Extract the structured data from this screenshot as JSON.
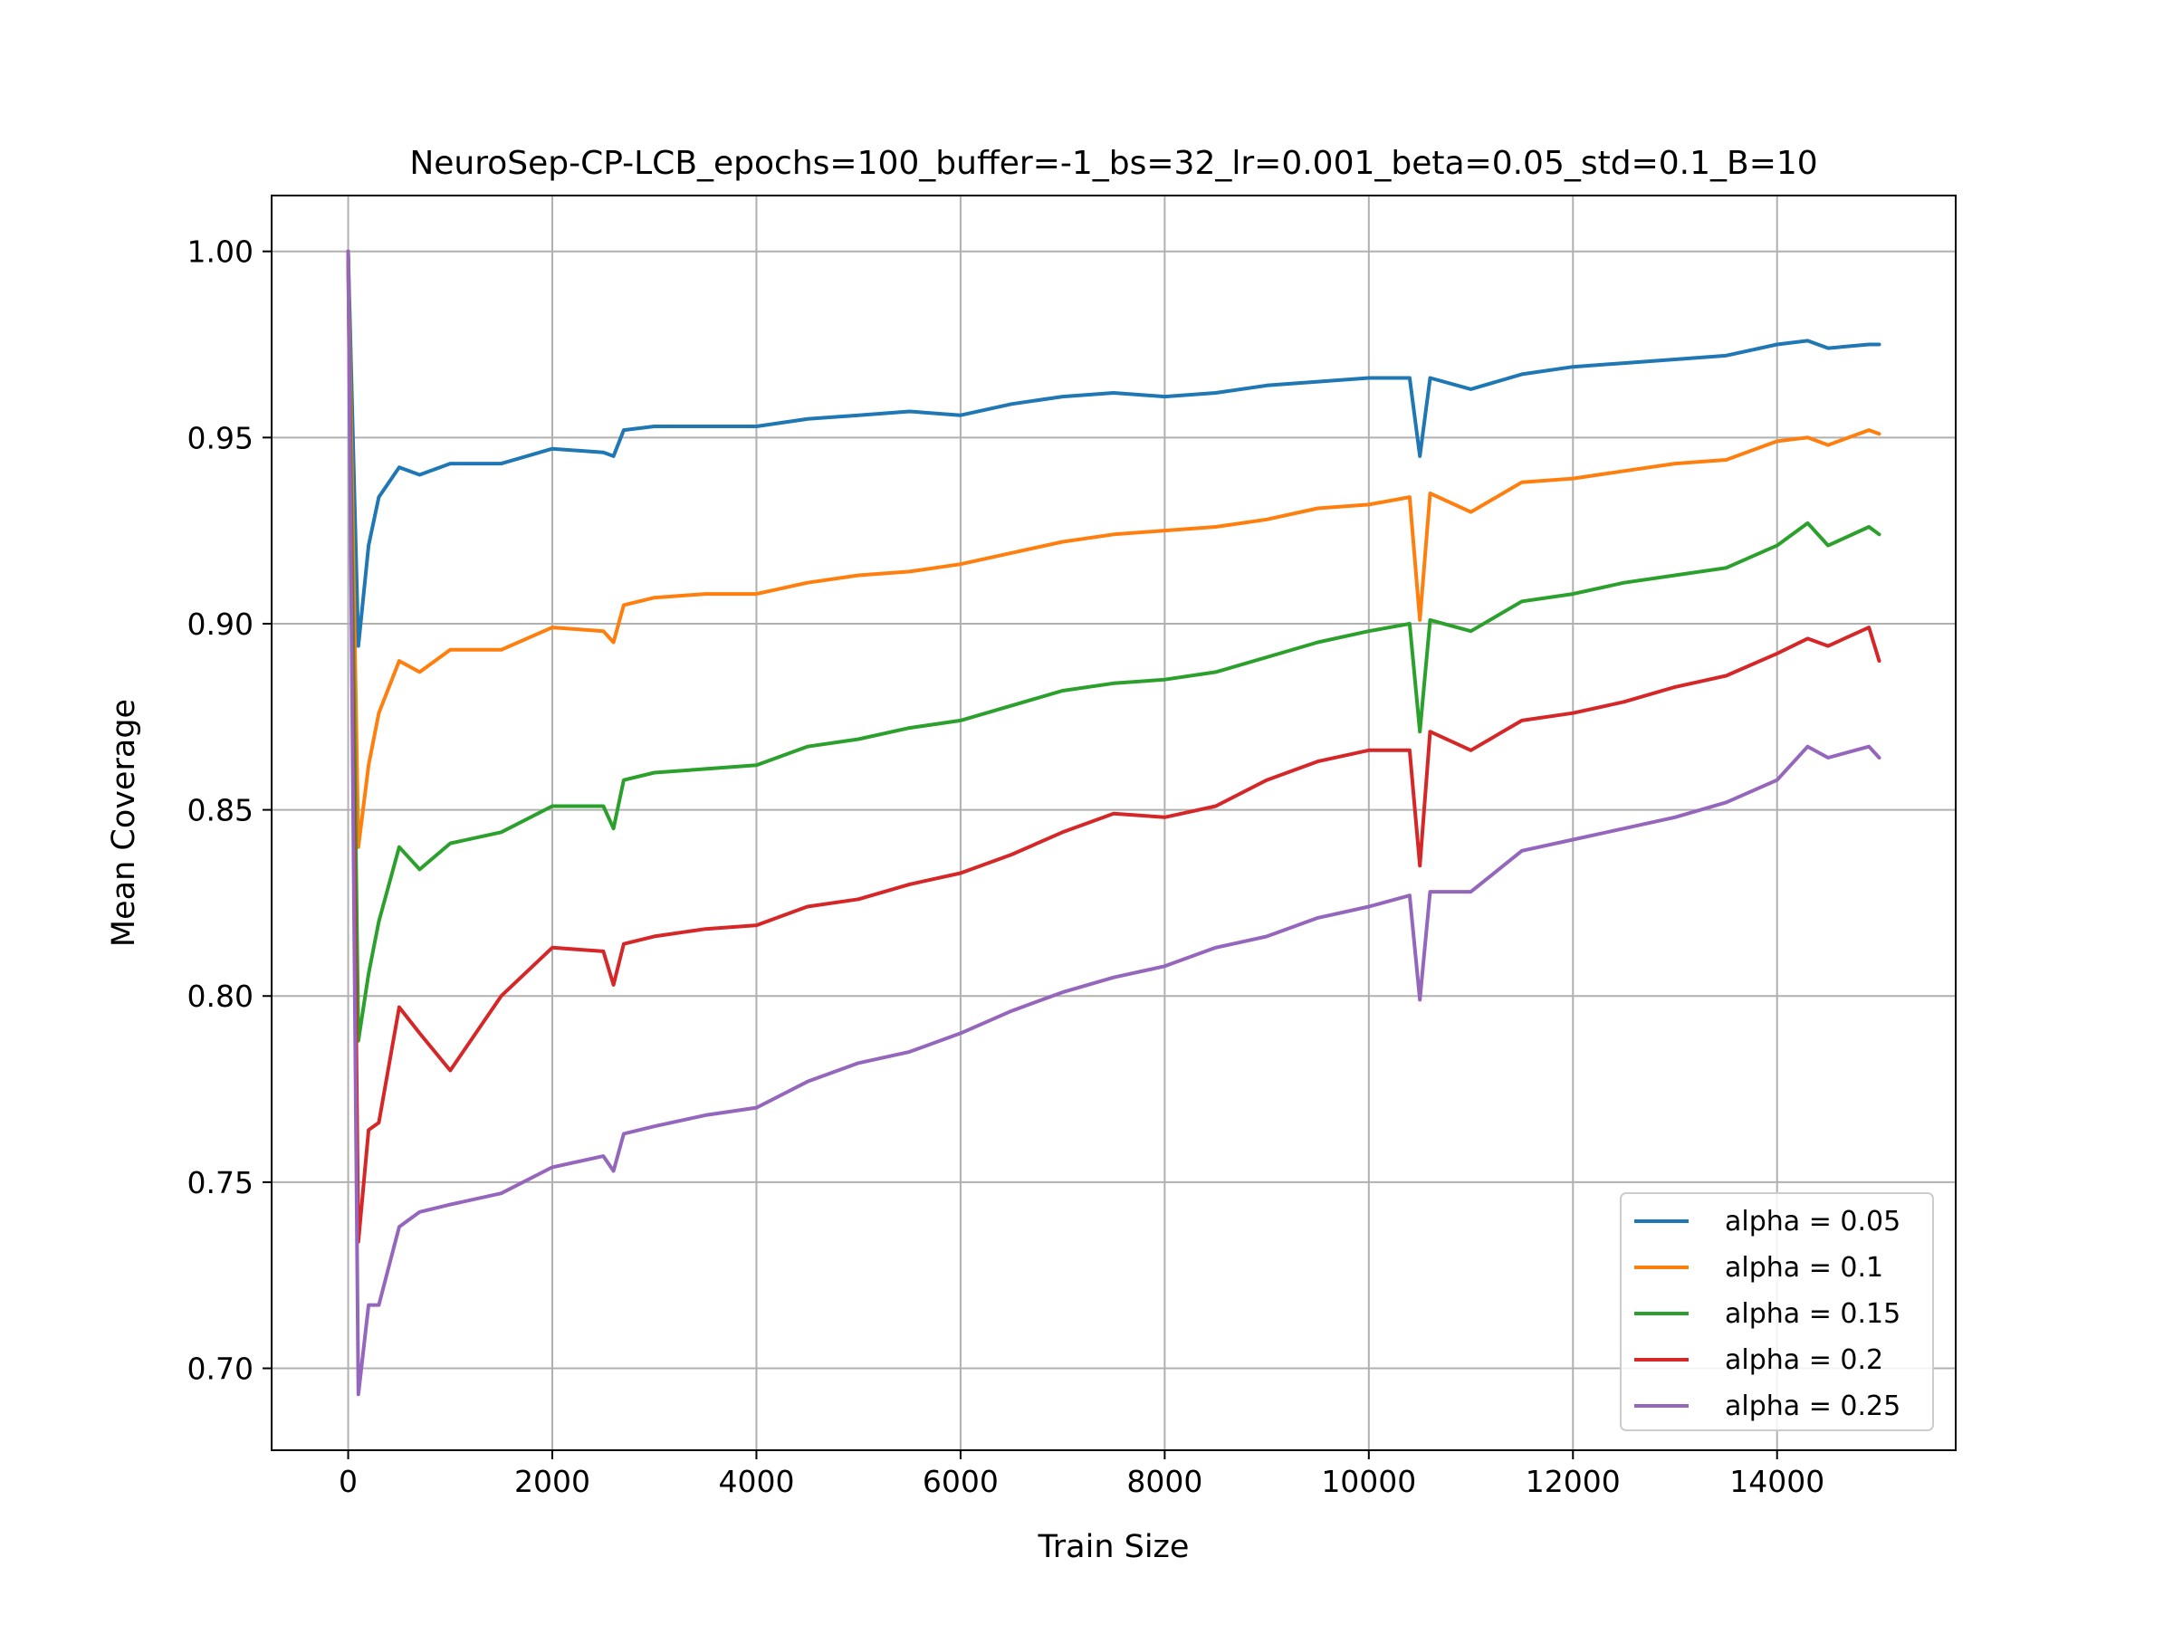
{
  "chart_data": {
    "type": "line",
    "title": "NeuroSep-CP-LCB_epochs=100_buffer=-1_bs=32_lr=0.001_beta=0.05_std=0.1_B=10",
    "xlabel": "Train Size",
    "ylabel": "Mean Coverage",
    "xlim": [
      -750,
      15750
    ],
    "ylim": [
      0.678,
      1.015
    ],
    "xticks": [
      0,
      2000,
      4000,
      6000,
      8000,
      10000,
      12000,
      14000
    ],
    "xtick_labels": [
      "0",
      "2000",
      "4000",
      "6000",
      "8000",
      "10000",
      "12000",
      "14000"
    ],
    "yticks": [
      0.7,
      0.75,
      0.8,
      0.85,
      0.9,
      0.95,
      1.0
    ],
    "ytick_labels": [
      "0.70",
      "0.75",
      "0.80",
      "0.85",
      "0.90",
      "0.95",
      "1.00"
    ],
    "grid": true,
    "legend_position": "lower-right",
    "x": [
      0,
      100,
      200,
      300,
      500,
      700,
      1000,
      1500,
      2000,
      2500,
      2600,
      2700,
      3000,
      3500,
      4000,
      4500,
      5000,
      5500,
      6000,
      6500,
      7000,
      7500,
      8000,
      8500,
      9000,
      9500,
      10000,
      10400,
      10500,
      10600,
      11000,
      11500,
      12000,
      12500,
      13000,
      13500,
      14000,
      14300,
      14500,
      14900,
      15000
    ],
    "series": [
      {
        "name": "alpha = 0.05",
        "color": "#1f77b4",
        "values": [
          1.0,
          0.894,
          0.921,
          0.934,
          0.942,
          0.94,
          0.943,
          0.943,
          0.947,
          0.946,
          0.945,
          0.952,
          0.953,
          0.953,
          0.953,
          0.955,
          0.956,
          0.957,
          0.956,
          0.959,
          0.961,
          0.962,
          0.961,
          0.962,
          0.964,
          0.965,
          0.966,
          0.966,
          0.945,
          0.966,
          0.963,
          0.967,
          0.969,
          0.97,
          0.971,
          0.972,
          0.975,
          0.976,
          0.974,
          0.975,
          0.975
        ]
      },
      {
        "name": "alpha = 0.1",
        "color": "#ff7f0e",
        "values": [
          1.0,
          0.84,
          0.862,
          0.876,
          0.89,
          0.887,
          0.893,
          0.893,
          0.899,
          0.898,
          0.895,
          0.905,
          0.907,
          0.908,
          0.908,
          0.911,
          0.913,
          0.914,
          0.916,
          0.919,
          0.922,
          0.924,
          0.925,
          0.926,
          0.928,
          0.931,
          0.932,
          0.934,
          0.901,
          0.935,
          0.93,
          0.938,
          0.939,
          0.941,
          0.943,
          0.944,
          0.949,
          0.95,
          0.948,
          0.952,
          0.951
        ]
      },
      {
        "name": "alpha = 0.15",
        "color": "#2ca02c",
        "values": [
          1.0,
          0.788,
          0.806,
          0.82,
          0.84,
          0.834,
          0.841,
          0.844,
          0.851,
          0.851,
          0.845,
          0.858,
          0.86,
          0.861,
          0.862,
          0.867,
          0.869,
          0.872,
          0.874,
          0.878,
          0.882,
          0.884,
          0.885,
          0.887,
          0.891,
          0.895,
          0.898,
          0.9,
          0.871,
          0.901,
          0.898,
          0.906,
          0.908,
          0.911,
          0.913,
          0.915,
          0.921,
          0.927,
          0.921,
          0.926,
          0.924
        ]
      },
      {
        "name": "alpha = 0.2",
        "color": "#d62728",
        "values": [
          1.0,
          0.734,
          0.764,
          0.766,
          0.797,
          0.79,
          0.78,
          0.8,
          0.813,
          0.812,
          0.803,
          0.814,
          0.816,
          0.818,
          0.819,
          0.824,
          0.826,
          0.83,
          0.833,
          0.838,
          0.844,
          0.849,
          0.848,
          0.851,
          0.858,
          0.863,
          0.866,
          0.866,
          0.835,
          0.871,
          0.866,
          0.874,
          0.876,
          0.879,
          0.883,
          0.886,
          0.892,
          0.896,
          0.894,
          0.899,
          0.89
        ]
      },
      {
        "name": "alpha = 0.25",
        "color": "#9467bd",
        "values": [
          1.0,
          0.693,
          0.717,
          0.717,
          0.738,
          0.742,
          0.744,
          0.747,
          0.754,
          0.757,
          0.753,
          0.763,
          0.765,
          0.768,
          0.77,
          0.777,
          0.782,
          0.785,
          0.79,
          0.796,
          0.801,
          0.805,
          0.808,
          0.813,
          0.816,
          0.821,
          0.824,
          0.827,
          0.799,
          0.828,
          0.828,
          0.839,
          0.842,
          0.845,
          0.848,
          0.852,
          0.858,
          0.867,
          0.864,
          0.867,
          0.864
        ]
      }
    ]
  }
}
